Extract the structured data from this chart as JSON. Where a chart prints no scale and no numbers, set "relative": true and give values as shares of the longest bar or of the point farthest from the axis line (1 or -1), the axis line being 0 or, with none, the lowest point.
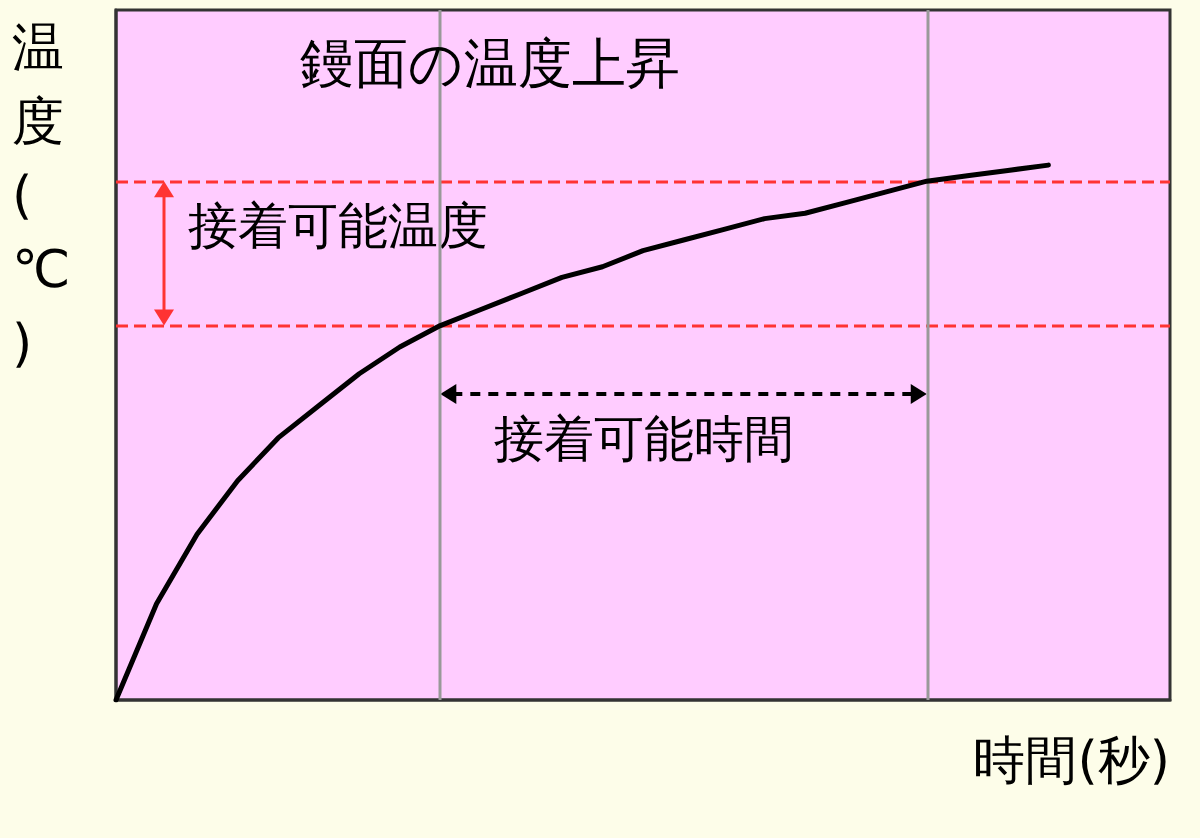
{
  "chart_data": {
    "type": "line",
    "relative": true,
    "title": "鏝面の温度上昇",
    "xlabel": "時間(秒)",
    "ylabel": "温度(℃)",
    "categories": [
      null,
      null,
      null,
      null,
      null,
      null,
      null,
      null,
      null,
      null,
      null,
      null,
      null,
      null,
      null,
      null,
      null,
      null,
      null,
      null,
      null,
      null,
      null,
      null,
      null,
      null,
      null
    ],
    "series": [
      {
        "color": "#000000",
        "values": [
          0,
          0.18,
          0.31,
          0.41,
          0.49,
          0.55,
          0.61,
          0.66,
          0.7,
          0.73,
          0.76,
          0.79,
          0.81,
          0.84,
          0.86,
          0.88,
          0.9,
          0.91,
          0.93,
          0.95,
          0.97,
          0.98,
          0.99,
          1,
          null,
          null,
          null
        ]
      }
    ],
    "ref_lines": [
      {
        "axis": "y",
        "value": 0.97,
        "color": "#ff3333",
        "line_style": "dashed"
      },
      {
        "axis": "y",
        "value": 0.7,
        "color": "#ff3333",
        "line_style": "dashed"
      }
    ],
    "annotations": [
      "接着可能温度",
      "接着可能時間"
    ],
    "marker": "none",
    "line_style": "solid",
    "grid": false
  }
}
